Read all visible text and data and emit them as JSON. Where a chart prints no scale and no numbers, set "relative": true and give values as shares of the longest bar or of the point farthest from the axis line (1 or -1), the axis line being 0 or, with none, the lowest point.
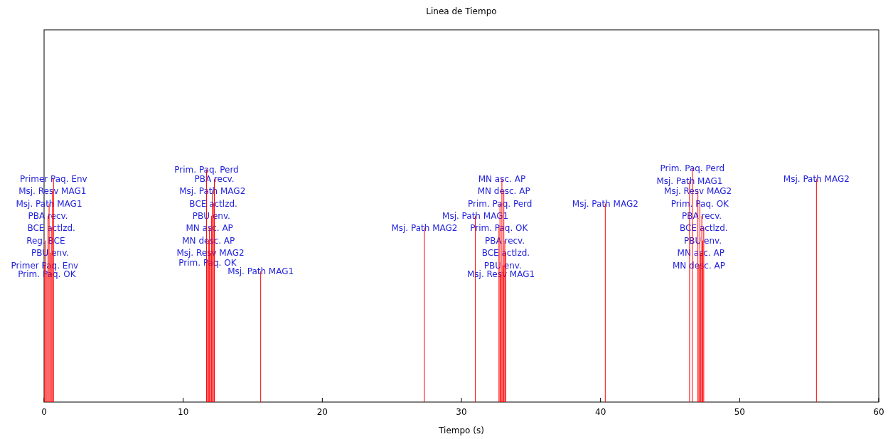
{
  "chart_data": {
    "type": "bar",
    "title": "Linea de Tiempo",
    "xlabel": "Tiempo (s)",
    "relative": true,
    "tick_labels": "x",
    "xlim": [
      0,
      60
    ],
    "xticks": [
      0,
      10,
      20,
      30,
      40,
      50,
      60
    ],
    "series": [
      {
        "color": "#ff0000",
        "x": [
          0.04,
          0.12,
          0.2,
          0.28,
          0.36,
          0.44,
          0.52,
          0.6,
          0.68,
          11.68,
          11.75,
          11.82,
          11.89,
          11.96,
          12.03,
          12.1,
          12.17,
          12.24,
          15.57,
          27.34,
          31.0,
          32.7,
          32.77,
          32.84,
          32.91,
          32.98,
          33.05,
          33.12,
          33.19,
          40.34,
          46.4,
          46.6,
          47.0,
          47.07,
          47.14,
          47.21,
          47.28,
          47.35,
          47.42,
          55.52
        ],
        "values": [
          0.584,
          0.69,
          0.547,
          0.796,
          0.848,
          0.638,
          0.745,
          0.903,
          0.954,
          0.994,
          0.596,
          0.69,
          0.745,
          0.638,
          0.796,
          0.903,
          0.848,
          0.954,
          0.559,
          0.745,
          0.796,
          0.745,
          0.848,
          0.547,
          0.954,
          0.584,
          0.903,
          0.69,
          0.638,
          0.848,
          0.945,
          1.0,
          0.903,
          0.584,
          0.848,
          0.638,
          0.796,
          0.69,
          0.745,
          0.954
        ]
      }
    ],
    "annotations": [
      {
        "text": "Primer Paq. Env",
        "x": 0.68,
        "y": 0.954
      },
      {
        "text": "Msj. Resv MAG1",
        "x": 0.6,
        "y": 0.903
      },
      {
        "text": "Msj. Path MAG1",
        "x": 0.36,
        "y": 0.848
      },
      {
        "text": "PBA recv.",
        "x": 0.28,
        "y": 0.796
      },
      {
        "text": "BCE actlzd.",
        "x": 0.52,
        "y": 0.745
      },
      {
        "text": "Reg. BCE",
        "x": 0.12,
        "y": 0.69
      },
      {
        "text": "PBU env.",
        "x": 0.44,
        "y": 0.638
      },
      {
        "text": "Primer Paq. Env",
        "x": 0.04,
        "y": 0.584
      },
      {
        "text": "Prim. Paq. OK",
        "x": 0.2,
        "y": 0.547
      },
      {
        "text": "Prim. Paq. Perd",
        "x": 11.68,
        "y": 0.994
      },
      {
        "text": "PBA recv.",
        "x": 12.24,
        "y": 0.954
      },
      {
        "text": "Msj. Path MAG2",
        "x": 12.1,
        "y": 0.903
      },
      {
        "text": "BCE actlzd.",
        "x": 12.17,
        "y": 0.848
      },
      {
        "text": "PBU env.",
        "x": 12.03,
        "y": 0.796
      },
      {
        "text": "MN asc. AP",
        "x": 11.89,
        "y": 0.745
      },
      {
        "text": "MN desc. AP",
        "x": 11.82,
        "y": 0.69
      },
      {
        "text": "Msj. Resv MAG2",
        "x": 11.96,
        "y": 0.638
      },
      {
        "text": "Prim. Paq. OK",
        "x": 11.75,
        "y": 0.596
      },
      {
        "text": "Msj. Path MAG1",
        "x": 15.57,
        "y": 0.559
      },
      {
        "text": "Msj. Path MAG2",
        "x": 27.34,
        "y": 0.745
      },
      {
        "text": "Msj. Path MAG1",
        "x": 31.0,
        "y": 0.796
      },
      {
        "text": "MN asc. AP",
        "x": 32.91,
        "y": 0.954
      },
      {
        "text": "MN desc. AP",
        "x": 33.05,
        "y": 0.903
      },
      {
        "text": "Prim. Paq. Perd",
        "x": 32.77,
        "y": 0.848
      },
      {
        "text": "Prim. Paq. OK",
        "x": 32.7,
        "y": 0.745
      },
      {
        "text": "PBA recv.",
        "x": 33.12,
        "y": 0.69
      },
      {
        "text": "BCE actlzd.",
        "x": 33.19,
        "y": 0.638
      },
      {
        "text": "PBU env.",
        "x": 32.98,
        "y": 0.584
      },
      {
        "text": "Msj. Resv MAG1",
        "x": 32.84,
        "y": 0.547
      },
      {
        "text": "Msj. Path MAG2",
        "x": 40.34,
        "y": 0.848
      },
      {
        "text": "Prim. Paq. Perd",
        "x": 46.6,
        "y": 1.0
      },
      {
        "text": "Msj. Path MAG1",
        "x": 46.4,
        "y": 0.945
      },
      {
        "text": "Msj. Resv MAG2",
        "x": 47.0,
        "y": 0.903
      },
      {
        "text": "Prim. Paq. OK",
        "x": 47.14,
        "y": 0.848
      },
      {
        "text": "PBA recv.",
        "x": 47.28,
        "y": 0.796
      },
      {
        "text": "BCE actlzd.",
        "x": 47.42,
        "y": 0.745
      },
      {
        "text": "PBU env.",
        "x": 47.35,
        "y": 0.69
      },
      {
        "text": "MN asc. AP",
        "x": 47.21,
        "y": 0.638
      },
      {
        "text": "MN desc. AP",
        "x": 47.07,
        "y": 0.584
      },
      {
        "text": "Msj. Path MAG2",
        "x": 55.52,
        "y": 0.954
      }
    ]
  }
}
